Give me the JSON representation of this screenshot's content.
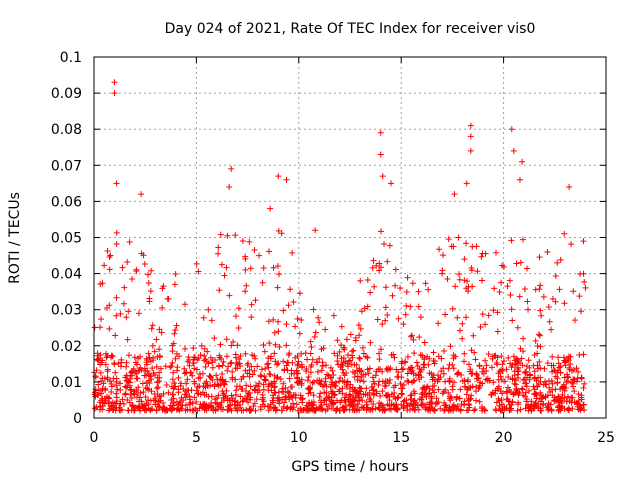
{
  "chart_data": {
    "type": "scatter",
    "title": "Day 024 of 2021, Rate Of TEC Index for receiver vis0",
    "xlabel": "GPS time / hours",
    "ylabel": "ROTI / TECUs",
    "xlim": [
      0,
      25
    ],
    "ylim": [
      0,
      0.1
    ],
    "xticks": [
      0,
      5,
      10,
      15,
      20,
      25
    ],
    "xtick_labels": [
      "0",
      "5",
      "10",
      "15",
      "20",
      "25"
    ],
    "yticks": [
      0,
      0.01,
      0.02,
      0.03,
      0.04,
      0.05,
      0.06,
      0.07,
      0.08,
      0.09,
      0.1
    ],
    "ytick_labels": [
      "0",
      "0.01",
      "0.02",
      "0.03",
      "0.04",
      "0.05",
      "0.06",
      "0.07",
      "0.08",
      "0.09",
      "0.1"
    ],
    "grid": true,
    "marker": "+",
    "color": "#ff0000",
    "x_range_of_data": [
      0,
      24
    ],
    "point_count_estimate": 2000,
    "series": [
      {
        "name": "ROTI",
        "notable_peaks": [
          {
            "x": 1.0,
            "y": 0.093
          },
          {
            "x": 1.0,
            "y": 0.09
          },
          {
            "x": 1.1,
            "y": 0.065
          },
          {
            "x": 2.3,
            "y": 0.062
          },
          {
            "x": 6.7,
            "y": 0.069
          },
          {
            "x": 6.6,
            "y": 0.064
          },
          {
            "x": 9.0,
            "y": 0.067
          },
          {
            "x": 9.4,
            "y": 0.066
          },
          {
            "x": 8.6,
            "y": 0.058
          },
          {
            "x": 10.8,
            "y": 0.052
          },
          {
            "x": 14.0,
            "y": 0.079
          },
          {
            "x": 14.0,
            "y": 0.073
          },
          {
            "x": 14.1,
            "y": 0.067
          },
          {
            "x": 14.5,
            "y": 0.065
          },
          {
            "x": 17.6,
            "y": 0.062
          },
          {
            "x": 18.2,
            "y": 0.065
          },
          {
            "x": 18.4,
            "y": 0.081
          },
          {
            "x": 18.4,
            "y": 0.078
          },
          {
            "x": 18.4,
            "y": 0.074
          },
          {
            "x": 20.4,
            "y": 0.08
          },
          {
            "x": 20.5,
            "y": 0.074
          },
          {
            "x": 20.9,
            "y": 0.071
          },
          {
            "x": 20.8,
            "y": 0.066
          },
          {
            "x": 23.2,
            "y": 0.064
          },
          {
            "x": 23.9,
            "y": 0.049
          },
          {
            "x": 13.0,
            "y": 0.038
          }
        ],
        "envelope_hours": [
          0,
          1,
          2,
          3,
          4,
          5,
          6,
          7,
          8,
          9,
          10,
          11,
          12,
          13,
          14,
          15,
          16,
          17,
          18,
          19,
          20,
          21,
          22,
          23,
          24
        ],
        "envelope_typical_max": [
          0.03,
          0.055,
          0.05,
          0.045,
          0.04,
          0.045,
          0.05,
          0.055,
          0.05,
          0.055,
          0.042,
          0.032,
          0.028,
          0.03,
          0.055,
          0.045,
          0.04,
          0.048,
          0.055,
          0.048,
          0.055,
          0.05,
          0.045,
          0.055,
          0.04
        ],
        "baseline_min": 0.002
      }
    ]
  }
}
